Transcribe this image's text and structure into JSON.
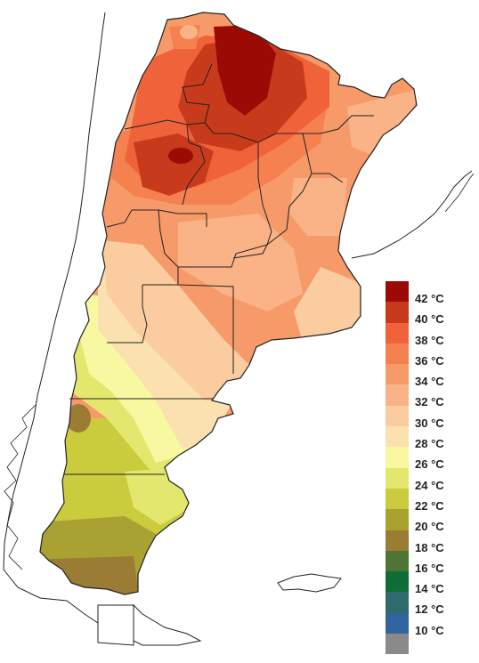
{
  "legend": {
    "items": [
      {
        "label": "42 °C",
        "color": "#9c0a05"
      },
      {
        "label": "40 °C",
        "color": "#c83a1c"
      },
      {
        "label": "38 °C",
        "color": "#f0633a"
      },
      {
        "label": "36 °C",
        "color": "#f58050"
      },
      {
        "label": "34 °C",
        "color": "#f79a6a"
      },
      {
        "label": "32 °C",
        "color": "#f9b386"
      },
      {
        "label": "30 °C",
        "color": "#fbcc9f"
      },
      {
        "label": "28 °C",
        "color": "#fbe1b0"
      },
      {
        "label": "26 °C",
        "color": "#f8f7a2"
      },
      {
        "label": "24 °C",
        "color": "#e4e76e"
      },
      {
        "label": "22 °C",
        "color": "#cbcb3e"
      },
      {
        "label": "20 °C",
        "color": "#a9a232"
      },
      {
        "label": "18 °C",
        "color": "#9a7c35"
      },
      {
        "label": "16 °C",
        "color": "#4e7536"
      },
      {
        "label": "14 °C",
        "color": "#0f6e36"
      },
      {
        "label": "12 °C",
        "color": "#2f6b6a"
      },
      {
        "label": "10 °C",
        "color": "#3165a0"
      },
      {
        "label": "",
        "color": "#8a8a8a"
      }
    ]
  }
}
